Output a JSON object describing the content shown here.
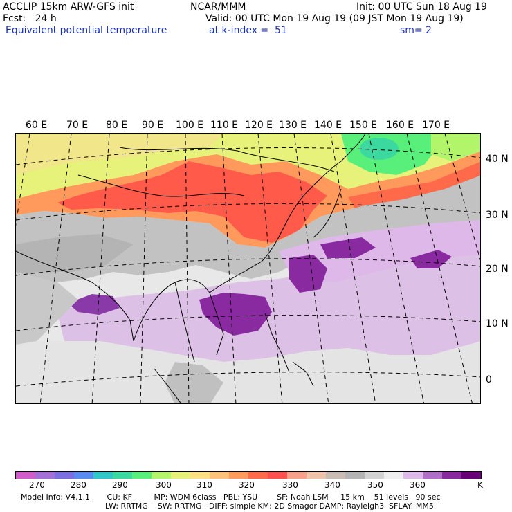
{
  "header": {
    "line1_left": "ACCLIP 15km ARW-GFS init",
    "line1_center": "NCAR/MMM",
    "line1_right": "Init: 00 UTC Sun 18 Aug 19",
    "line2_left": "Fcst:   24 h",
    "line2_right": "Valid: 00 UTC Mon 19 Aug 19 (09 JST Mon 19 Aug 19)",
    "line3_field": "Equivalent potential temperature",
    "line3_level": "at k-index =  51",
    "line3_smooth": "sm= 2"
  },
  "lon_labels": [
    "60 E",
    "70 E",
    "80 E",
    "90 E",
    "100 E",
    "110 E",
    "120 E",
    "130 E",
    "140 E",
    "150 E",
    "160 E",
    "170 E"
  ],
  "lat_labels": [
    "40 N",
    "30 N",
    "20 N",
    "10 N",
    "0"
  ],
  "colorbar": {
    "colors": [
      "#d25cc9",
      "#a46fd6",
      "#7b6ee0",
      "#5a8bf0",
      "#2ec6c6",
      "#3bd9a0",
      "#58f07a",
      "#b2f56a",
      "#e6f27a",
      "#ffe082",
      "#ffc27a",
      "#ff9a5c",
      "#ff6a4a",
      "#ff5050",
      "#f7a08c",
      "#f0c4aa",
      "#c8bcb3",
      "#b4b4b4",
      "#d2d2d2",
      "#efefef",
      "#ddb8e8",
      "#b070c8",
      "#8a2aa0",
      "#6a0078"
    ],
    "ticks": [
      "270",
      "280",
      "290",
      "300",
      "310",
      "320",
      "330",
      "340",
      "350",
      "360"
    ],
    "unit": "K"
  },
  "model_info": {
    "line1": "Model Info: V4.1.1       CU: KF         MP: WDM 6class   PBL: YSU        SF: Noah LSM     15 km    51 levels   90 sec",
    "line2": "LW: RRTMG    SW: RRTMG   DIFF: simple KM: 2D Smagor DAMP: Rayleigh3  SFLAY: MM5"
  }
}
